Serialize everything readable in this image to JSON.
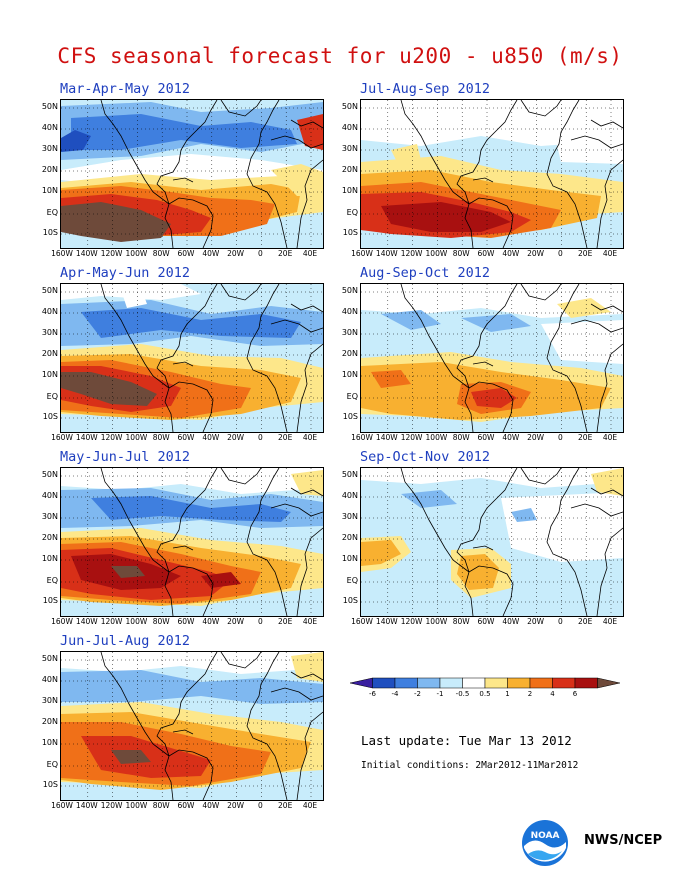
{
  "title": "CFS seasonal forecast for u200 - u850 (m/s)",
  "panels": [
    {
      "title": "Mar-Apr-May 2012"
    },
    {
      "title": "Jul-Aug-Sep 2012"
    },
    {
      "title": "Apr-May-Jun 2012"
    },
    {
      "title": "Aug-Sep-Oct 2012"
    },
    {
      "title": "May-Jun-Jul 2012"
    },
    {
      "title": "Sep-Oct-Nov 2012"
    },
    {
      "title": "Jun-Jul-Aug 2012"
    }
  ],
  "lat_labels": [
    "50N",
    "40N",
    "30N",
    "20N",
    "10N",
    "EQ",
    "10S"
  ],
  "lon_labels": [
    "160W",
    "140W",
    "120W",
    "100W",
    "80W",
    "60W",
    "40W",
    "20W",
    "0",
    "20E",
    "40E"
  ],
  "colorbar": {
    "labels": [
      "-6",
      "-4",
      "-2",
      "-1",
      "-0.5",
      "0.5",
      "1",
      "2",
      "4",
      "6"
    ],
    "colors": [
      "#3a1fa0",
      "#1f4fbf",
      "#3f7fdf",
      "#7fb8f0",
      "#c8ecfb",
      "#ffffff",
      "#fde78a",
      "#f8b030",
      "#f07018",
      "#d83018",
      "#a81010",
      "#6e4a3a"
    ]
  },
  "last_update": "Last update: Tue Mar 13 2012",
  "initial_conditions": "Initial conditions: 2Mar2012-11Mar2012",
  "agency": "NWS/NCEP",
  "logo_text": "NOAA"
}
